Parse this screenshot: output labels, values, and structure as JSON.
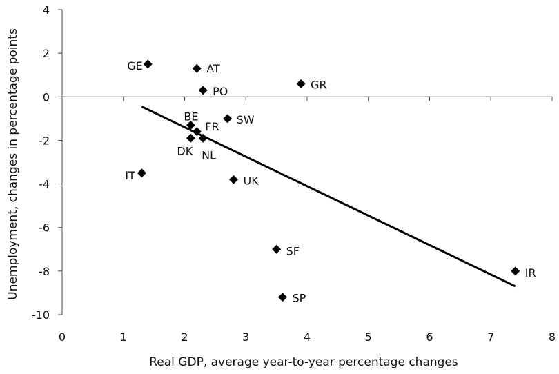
{
  "chart_data": {
    "type": "scatter",
    "title": "",
    "xlabel": "Real GDP, average year-to-year percentage changes",
    "ylabel": "Unemployment,  changes in percentage points",
    "xlim": [
      0,
      8
    ],
    "ylim": [
      -10,
      4
    ],
    "xticks": [
      "0",
      "1",
      "2",
      "3",
      "4",
      "5",
      "6",
      "7",
      "8"
    ],
    "yticks": [
      "-10",
      "-8",
      "-6",
      "-4",
      "-2",
      "0",
      "2",
      "4"
    ],
    "grid": false,
    "legend": "none",
    "marker_color": "#000000",
    "trendline": {
      "x": [
        1.3,
        7.4
      ],
      "y": [
        -0.45,
        -8.7
      ]
    },
    "points": [
      {
        "label": "GE",
        "x": 1.4,
        "y": 1.5
      },
      {
        "label": "AT",
        "x": 2.2,
        "y": 1.3
      },
      {
        "label": "PO",
        "x": 2.3,
        "y": 0.3
      },
      {
        "label": "GR",
        "x": 3.9,
        "y": 0.6
      },
      {
        "label": "BE",
        "x": 2.1,
        "y": -1.3
      },
      {
        "label": "FR",
        "x": 2.2,
        "y": -1.6
      },
      {
        "label": "SW",
        "x": 2.7,
        "y": -1.0
      },
      {
        "label": "DK",
        "x": 2.1,
        "y": -1.9
      },
      {
        "label": "NL",
        "x": 2.3,
        "y": -1.9
      },
      {
        "label": "IT",
        "x": 1.3,
        "y": -3.5
      },
      {
        "label": "UK",
        "x": 2.8,
        "y": -3.8
      },
      {
        "label": "SF",
        "x": 3.5,
        "y": -7.0
      },
      {
        "label": "IR",
        "x": 7.4,
        "y": -8.0
      },
      {
        "label": "SP",
        "x": 3.6,
        "y": -9.2
      }
    ]
  }
}
